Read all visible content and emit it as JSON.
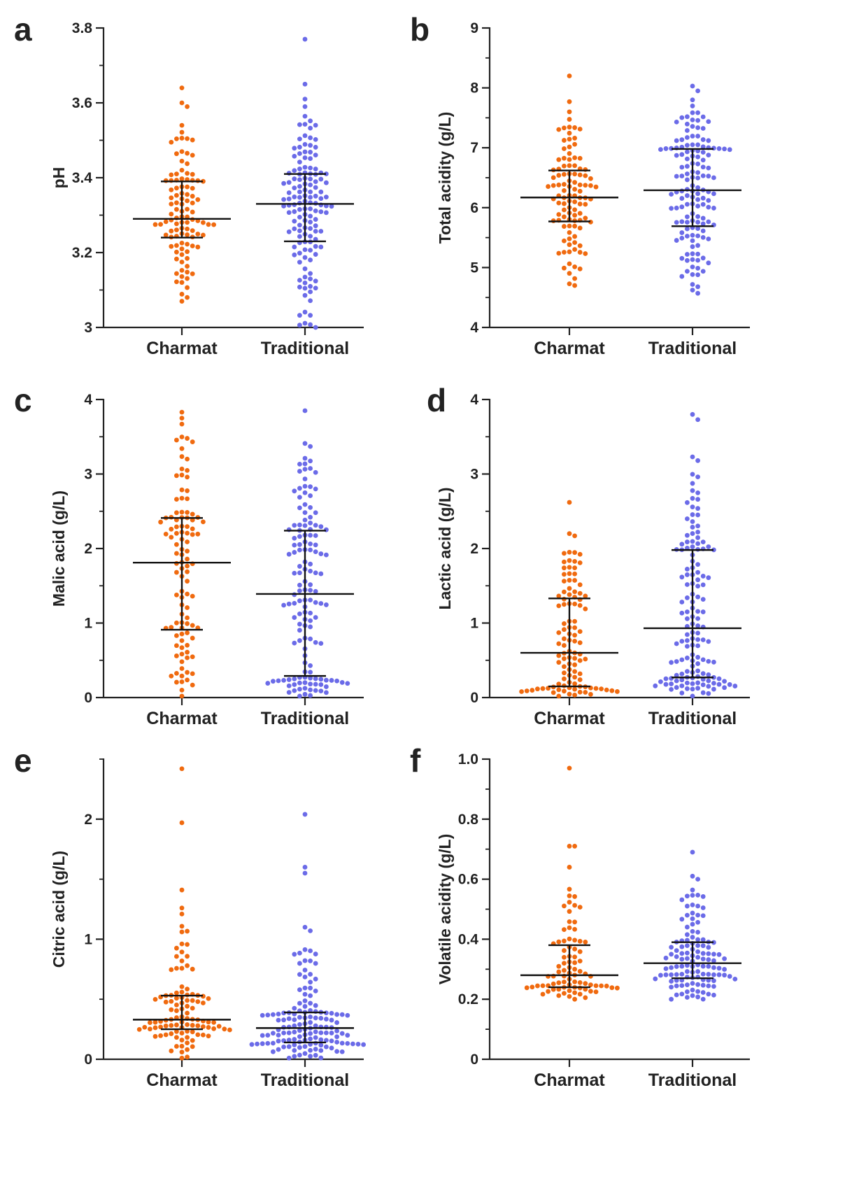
{
  "figure": {
    "colors": {
      "Charmat": "#F06A0F",
      "Traditional": "#6B6BE8",
      "axis": "#222222",
      "summary": "#111111"
    }
  },
  "chart_data": [
    {
      "panel": "a",
      "type": "scatter",
      "subtype": "dot-plot-with-median-and-iqr",
      "ylabel": "pH",
      "ylim": [
        3.0,
        3.8
      ],
      "yticks": [
        3,
        3.2,
        3.4,
        3.6,
        3.8
      ],
      "ytick_labels": [
        "3",
        "3.2",
        "3.4",
        "3.6",
        "3.8"
      ],
      "yminor": 0.1,
      "categories": [
        "Charmat",
        "Traditional"
      ],
      "series": [
        {
          "name": "Charmat",
          "n": 105,
          "median": 3.29,
          "q1": 3.24,
          "q3": 3.39,
          "min": 3.07,
          "max": 3.64,
          "high_values": [
            3.64,
            3.6,
            3.59,
            3.54
          ]
        },
        {
          "name": "Traditional",
          "n": 140,
          "median": 3.33,
          "q1": 3.23,
          "q3": 3.41,
          "min": 3.0,
          "max": 3.77,
          "high_values": [
            3.77,
            3.65,
            3.61,
            3.59
          ]
        }
      ]
    },
    {
      "panel": "b",
      "type": "scatter",
      "subtype": "dot-plot-with-median-and-iqr",
      "ylabel": "Total acidity (g/L)",
      "ylim": [
        4,
        9
      ],
      "yticks": [
        4,
        5,
        6,
        7,
        8,
        9
      ],
      "ytick_labels": [
        "4",
        "5",
        "6",
        "7",
        "8",
        "9"
      ],
      "yminor": 0.5,
      "categories": [
        "Charmat",
        "Traditional"
      ],
      "series": [
        {
          "name": "Charmat",
          "n": 105,
          "median": 6.17,
          "q1": 5.77,
          "q3": 6.62,
          "min": 4.7,
          "max": 8.2,
          "high_values": [
            8.2,
            7.77,
            7.6
          ]
        },
        {
          "name": "Traditional",
          "n": 140,
          "median": 6.29,
          "q1": 5.69,
          "q3": 6.98,
          "min": 4.57,
          "max": 8.03,
          "high_values": [
            8.03,
            7.95,
            7.8
          ]
        }
      ]
    },
    {
      "panel": "c",
      "type": "scatter",
      "subtype": "dot-plot-with-median-and-iqr",
      "ylabel": "Malic acid (g/L)",
      "ylim": [
        0,
        4
      ],
      "yticks": [
        0,
        1,
        2,
        3,
        4
      ],
      "ytick_labels": [
        "0",
        "1",
        "2",
        "3",
        "4"
      ],
      "yminor": 0.5,
      "categories": [
        "Charmat",
        "Traditional"
      ],
      "series": [
        {
          "name": "Charmat",
          "n": 105,
          "median": 1.81,
          "q1": 0.91,
          "q3": 2.41,
          "min": 0.02,
          "max": 3.83,
          "high_values": [
            3.83,
            3.75,
            3.67
          ]
        },
        {
          "name": "Traditional",
          "n": 140,
          "median": 1.39,
          "q1": 0.29,
          "q3": 2.24,
          "min": 0.02,
          "max": 3.85,
          "high_values": [
            3.85,
            3.41,
            3.37
          ]
        }
      ]
    },
    {
      "panel": "d",
      "type": "scatter",
      "subtype": "dot-plot-with-median-and-iqr",
      "ylabel": "Lactic acid (g/L)",
      "ylim": [
        0,
        4
      ],
      "yticks": [
        0,
        1,
        2,
        3,
        4
      ],
      "ytick_labels": [
        "0",
        "1",
        "2",
        "3",
        "4"
      ],
      "yminor": 0.5,
      "categories": [
        "Charmat",
        "Traditional"
      ],
      "series": [
        {
          "name": "Charmat",
          "n": 105,
          "median": 0.6,
          "q1": 0.15,
          "q3": 1.33,
          "min": 0.02,
          "max": 2.62,
          "high_values": [
            2.62,
            2.2,
            2.17
          ]
        },
        {
          "name": "Traditional",
          "n": 140,
          "median": 0.93,
          "q1": 0.27,
          "q3": 1.98,
          "min": 0.02,
          "max": 3.8,
          "high_values": [
            3.8,
            3.73,
            3.23,
            3.18
          ]
        }
      ]
    },
    {
      "panel": "e",
      "type": "scatter",
      "subtype": "dot-plot-with-median-and-iqr",
      "ylabel": "Citric acid (g/L)",
      "ylim": [
        0,
        2.5
      ],
      "yticks": [
        0,
        1,
        2
      ],
      "ytick_labels": [
        "0",
        "1",
        "2"
      ],
      "yminor": 0.5,
      "categories": [
        "Charmat",
        "Traditional"
      ],
      "series": [
        {
          "name": "Charmat",
          "n": 105,
          "median": 0.33,
          "q1": 0.25,
          "q3": 0.53,
          "min": 0.01,
          "max": 2.42,
          "high_values": [
            2.42,
            1.97,
            1.41,
            1.26,
            1.21
          ]
        },
        {
          "name": "Traditional",
          "n": 140,
          "median": 0.26,
          "q1": 0.14,
          "q3": 0.39,
          "min": 0.01,
          "max": 2.04,
          "high_values": [
            2.04,
            1.6,
            1.55,
            1.1,
            1.07
          ]
        }
      ]
    },
    {
      "panel": "f",
      "type": "scatter",
      "subtype": "dot-plot-with-median-and-iqr",
      "ylabel": "Volatile acidity (g/L)",
      "ylim": [
        0,
        1.0
      ],
      "yticks": [
        0,
        0.2,
        0.4,
        0.6,
        0.8,
        1.0
      ],
      "ytick_labels": [
        "0",
        "0.2",
        "0.4",
        "0.6",
        "0.8",
        "1.0"
      ],
      "yminor": 0.1,
      "categories": [
        "Charmat",
        "Traditional"
      ],
      "series": [
        {
          "name": "Charmat",
          "n": 85,
          "median": 0.28,
          "q1": 0.24,
          "q3": 0.38,
          "min": 0.2,
          "max": 0.97,
          "high_values": [
            0.97,
            0.71,
            0.71,
            0.64
          ]
        },
        {
          "name": "Traditional",
          "n": 120,
          "median": 0.32,
          "q1": 0.27,
          "q3": 0.39,
          "min": 0.2,
          "max": 0.69,
          "high_values": [
            0.69,
            0.61,
            0.6
          ]
        }
      ]
    }
  ]
}
